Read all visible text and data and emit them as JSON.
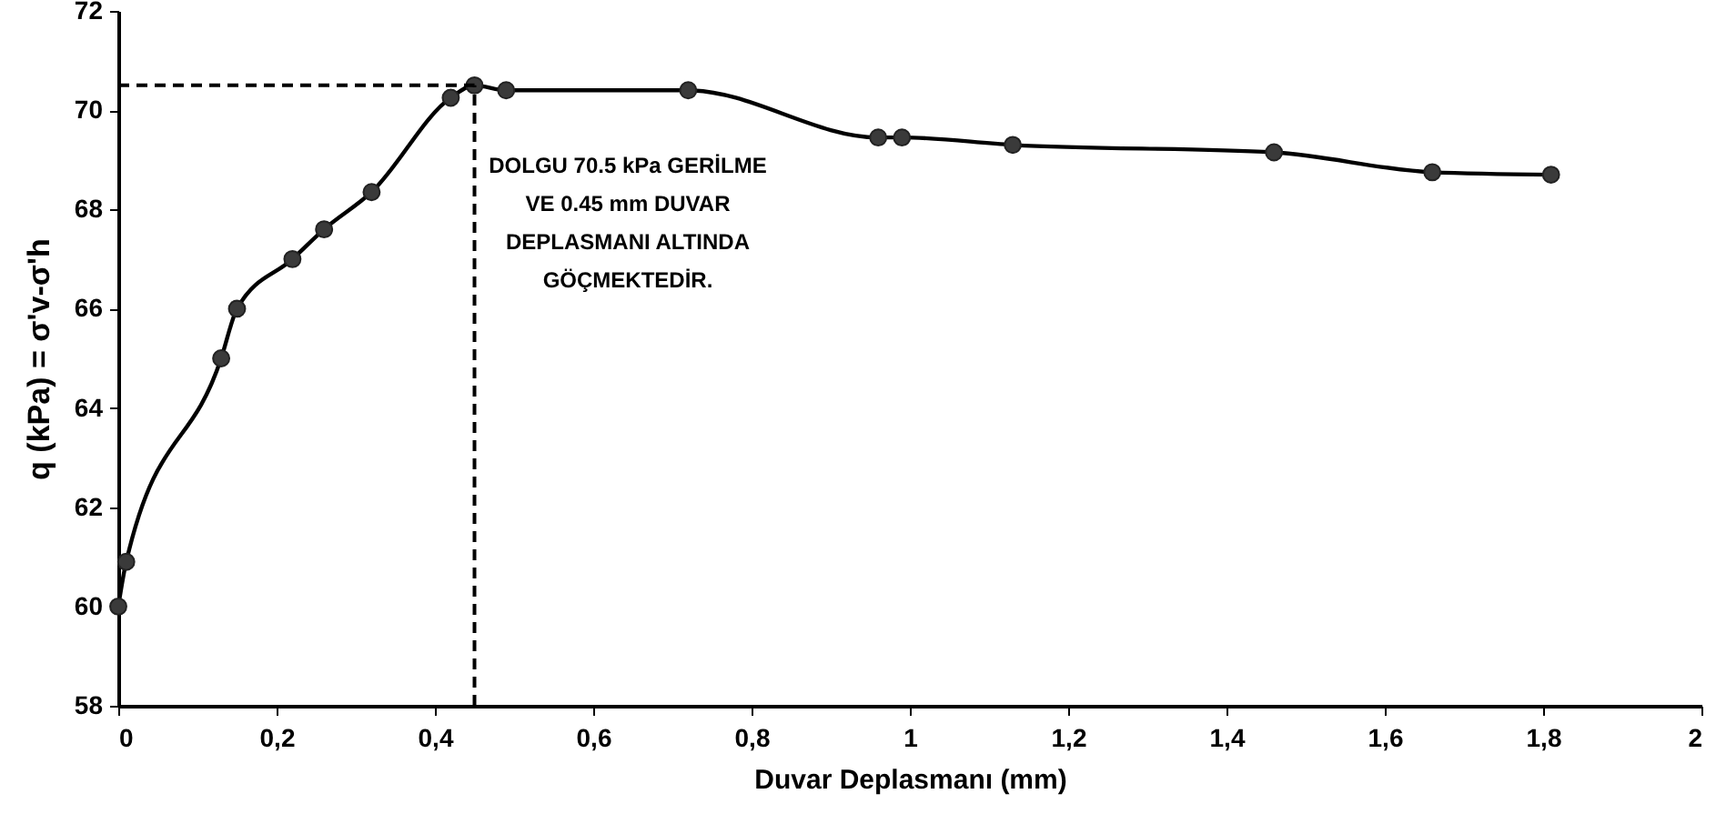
{
  "chart_data": {
    "type": "line",
    "x": [
      0,
      0.01,
      0.13,
      0.15,
      0.22,
      0.26,
      0.32,
      0.42,
      0.45,
      0.49,
      0.72,
      0.96,
      0.99,
      1.13,
      1.46,
      1.66,
      1.81
    ],
    "series": [
      {
        "color": "#000000",
        "values": [
          60,
          60.9,
          65,
          66,
          67,
          67.6,
          68.35,
          70.25,
          70.5,
          70.4,
          70.4,
          69.45,
          69.45,
          69.3,
          69.15,
          68.75,
          68.7
        ]
      }
    ],
    "xlabel": "Duvar Deplasmanı (mm)",
    "ylabel": "q (kPa) = σ'v-σ'h",
    "xlim": [
      0,
      2
    ],
    "ylim": [
      58,
      72
    ],
    "xticks": [
      {
        "value": 0,
        "label": "0"
      },
      {
        "value": 0.2,
        "label": "0,2"
      },
      {
        "value": 0.4,
        "label": "0,4"
      },
      {
        "value": 0.6,
        "label": "0,6"
      },
      {
        "value": 0.8,
        "label": "0,8"
      },
      {
        "value": 1,
        "label": "1"
      },
      {
        "value": 1.2,
        "label": "1,2"
      },
      {
        "value": 1.4,
        "label": "1,4"
      },
      {
        "value": 1.6,
        "label": "1,6"
      },
      {
        "value": 1.8,
        "label": "1,8"
      },
      {
        "value": 2,
        "label": "2"
      }
    ],
    "yticks": [
      58,
      60,
      62,
      64,
      66,
      68,
      70,
      72
    ],
    "ref_lines": [
      {
        "axis": "x",
        "value": 0.45,
        "line_style": "dashed",
        "color": "#000000"
      },
      {
        "axis": "y",
        "value": 70.5,
        "line_style": "dashed",
        "color": "#000000"
      }
    ],
    "annotations": [
      "DOLGU 70.5 kPa GERİLME\nVE 0.45 mm DUVAR\nDEPLASMANI ALTINDA\nGÖÇMEKTEDİR."
    ],
    "marker": "circle",
    "line_style": "solid",
    "grid": false
  }
}
